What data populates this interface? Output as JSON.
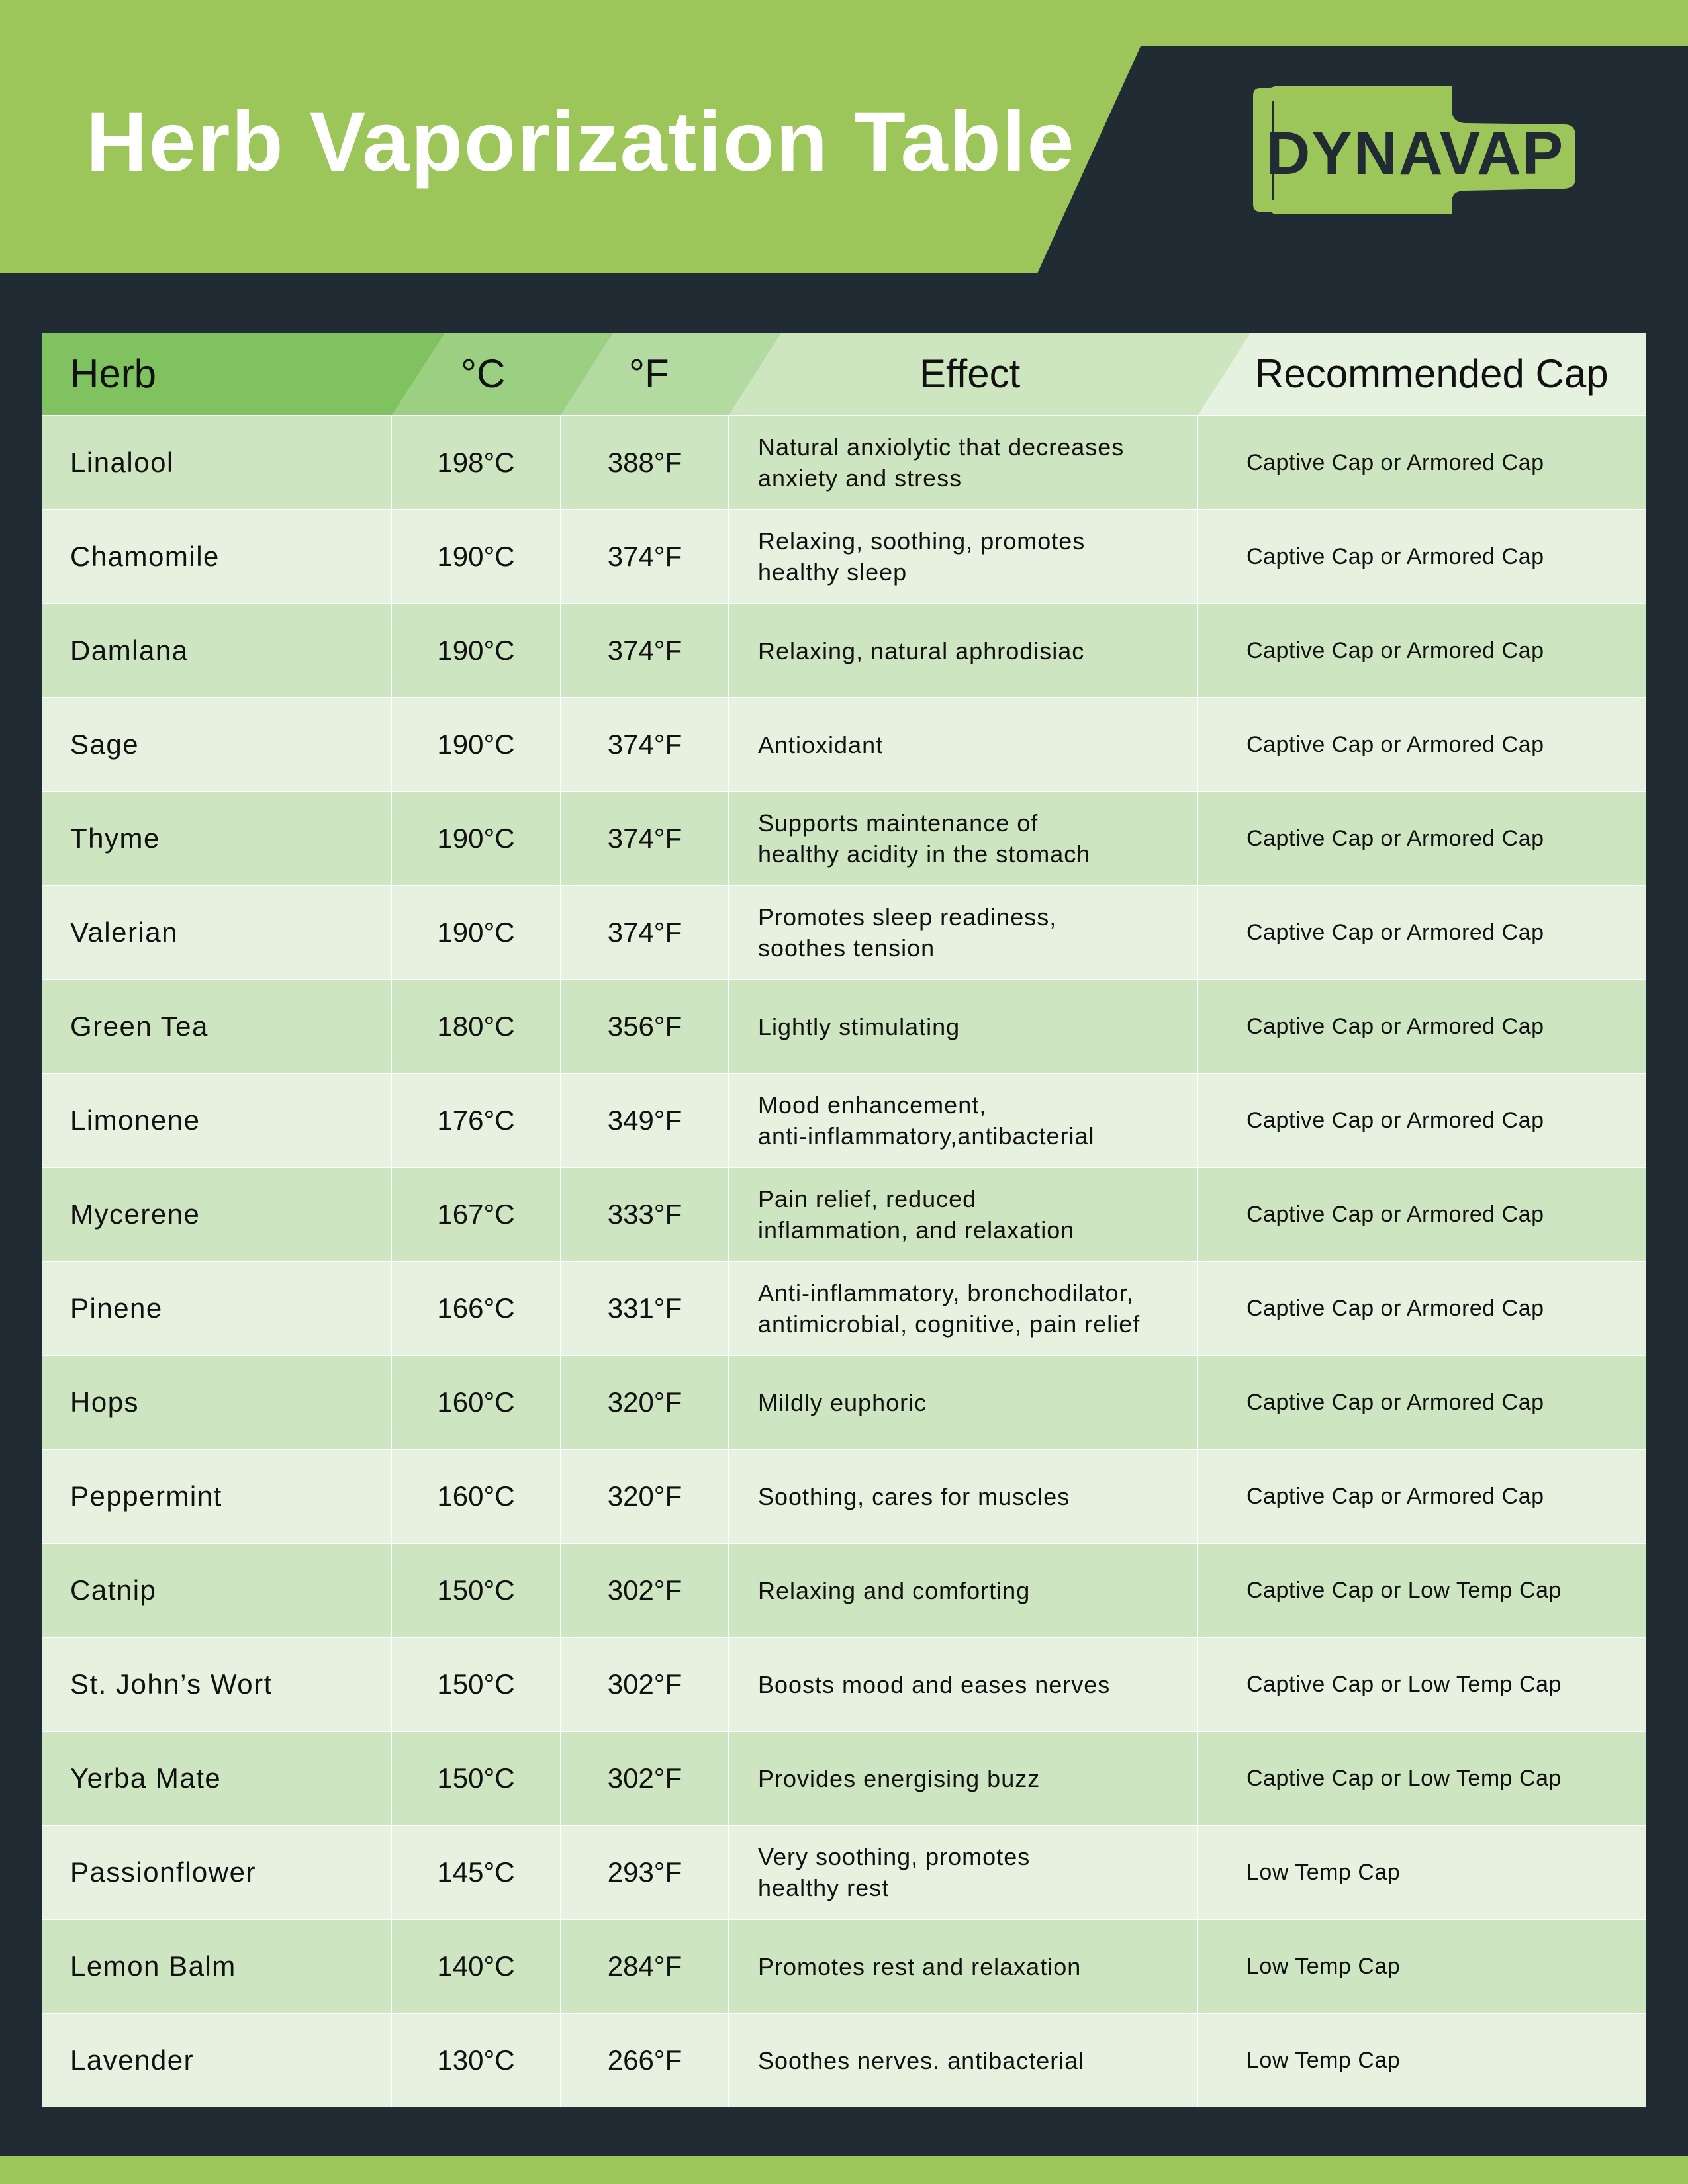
{
  "title": "Herb Vaporization Table",
  "logo_text": "DYNAVAP",
  "colors": {
    "brand_green": "#9cc659",
    "dark": "#202b33",
    "row_odd": "#cde5c0",
    "row_even": "#e6f1df"
  },
  "headers": {
    "herb": "Herb",
    "celsius": "°C",
    "fahrenheit": "°F",
    "effect": "Effect",
    "cap": "Recommended Cap"
  },
  "rows": [
    {
      "herb": "Linalool",
      "c": "198°C",
      "f": "388°F",
      "effect": "Natural anxiolytic that decreases\nanxiety and stress",
      "cap": "Captive Cap or Armored Cap"
    },
    {
      "herb": "Chamomile",
      "c": "190°C",
      "f": "374°F",
      "effect": "Relaxing, soothing, promotes\nhealthy sleep",
      "cap": "Captive Cap or Armored Cap"
    },
    {
      "herb": "Damlana",
      "c": "190°C",
      "f": "374°F",
      "effect": "Relaxing, natural aphrodisiac",
      "cap": "Captive Cap or Armored Cap"
    },
    {
      "herb": "Sage",
      "c": "190°C",
      "f": "374°F",
      "effect": "Antioxidant",
      "cap": "Captive Cap or Armored Cap"
    },
    {
      "herb": "Thyme",
      "c": "190°C",
      "f": "374°F",
      "effect": "Supports maintenance of\nhealthy acidity in the stomach",
      "cap": "Captive Cap or Armored Cap"
    },
    {
      "herb": "Valerian",
      "c": "190°C",
      "f": "374°F",
      "effect": "Promotes sleep readiness,\nsoothes tension",
      "cap": "Captive Cap or Armored Cap"
    },
    {
      "herb": "Green Tea",
      "c": "180°C",
      "f": "356°F",
      "effect": "Lightly stimulating",
      "cap": "Captive Cap or Armored Cap"
    },
    {
      "herb": "Limonene",
      "c": "176°C",
      "f": "349°F",
      "effect": "Mood enhancement,\nanti-inflammatory,antibacterial",
      "cap": "Captive Cap or Armored Cap"
    },
    {
      "herb": "Mycerene",
      "c": "167°C",
      "f": "333°F",
      "effect": "Pain relief, reduced\ninflammation, and relaxation",
      "cap": "Captive Cap or Armored Cap"
    },
    {
      "herb": "Pinene",
      "c": "166°C",
      "f": "331°F",
      "effect": "Anti-inflammatory, bronchodilator,\nantimicrobial, cognitive, pain relief",
      "cap": "Captive Cap or Armored Cap"
    },
    {
      "herb": "Hops",
      "c": "160°C",
      "f": "320°F",
      "effect": "Mildly euphoric",
      "cap": "Captive Cap or Armored Cap"
    },
    {
      "herb": "Peppermint",
      "c": "160°C",
      "f": "320°F",
      "effect": "Soothing, cares for muscles",
      "cap": "Captive Cap or Armored Cap"
    },
    {
      "herb": "Catnip",
      "c": "150°C",
      "f": "302°F",
      "effect": "Relaxing and comforting",
      "cap": "Captive Cap or Low Temp Cap"
    },
    {
      "herb": "St. John’s Wort",
      "c": "150°C",
      "f": "302°F",
      "effect": "Boosts mood and eases nerves",
      "cap": "Captive Cap or Low Temp Cap"
    },
    {
      "herb": "Yerba Mate",
      "c": "150°C",
      "f": "302°F",
      "effect": "Provides energising buzz",
      "cap": "Captive Cap or Low Temp Cap"
    },
    {
      "herb": "Passionflower",
      "c": "145°C",
      "f": "293°F",
      "effect": "Very soothing, promotes\nhealthy rest",
      "cap": "Low Temp Cap"
    },
    {
      "herb": "Lemon Balm",
      "c": "140°C",
      "f": "284°F",
      "effect": "Promotes rest and relaxation",
      "cap": "Low Temp Cap"
    },
    {
      "herb": "Lavender",
      "c": "130°C",
      "f": "266°F",
      "effect": "Soothes nerves. antibacterial",
      "cap": "Low Temp Cap"
    }
  ]
}
